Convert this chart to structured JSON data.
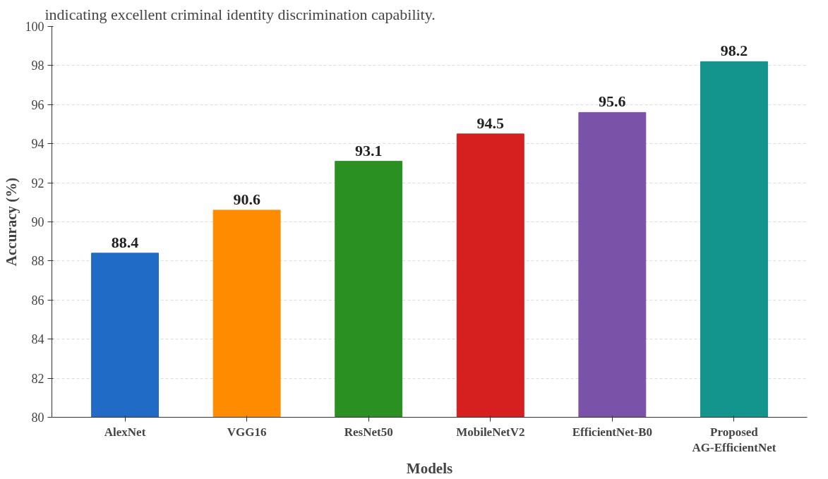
{
  "chart_data": {
    "type": "bar",
    "annotations": [
      "indicating excellent criminal identity discrimination capability."
    ],
    "xlabel": "Models",
    "ylabel": "Accuracy (%)",
    "categories": [
      "AlexNet",
      "VGG16",
      "ResNet50",
      "MobileNetV2",
      "EfficientNet-B0",
      "Proposed\nAG-EfficientNet"
    ],
    "values": [
      88.4,
      90.6,
      93.1,
      94.5,
      95.6,
      98.2
    ],
    "colors": [
      "#1f6bc6",
      "#ff8c00",
      "#299021",
      "#d61f1f",
      "#7a52a8",
      "#13958d"
    ],
    "ylim": [
      80,
      100
    ],
    "yticks": [
      80,
      82,
      84,
      86,
      88,
      90,
      92,
      94,
      96,
      98,
      100
    ],
    "grid": "y",
    "data_labels": true
  }
}
